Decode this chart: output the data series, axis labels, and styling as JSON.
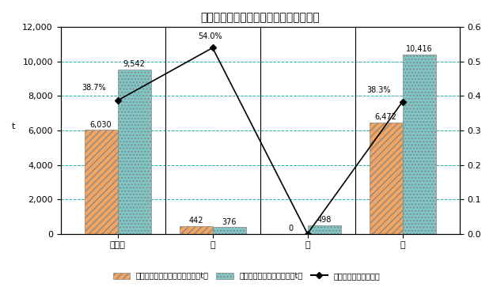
{
  "title": "家畜糞処理計画（堆肥センター処理分）",
  "categories": [
    "乳用牛",
    "豚",
    "馬",
    "計"
  ],
  "bar1_values": [
    6030,
    442,
    0,
    6472
  ],
  "bar2_values": [
    9542,
    376,
    498,
    10416
  ],
  "bar1_labels": [
    "6,030",
    "442",
    "0",
    "6,472"
  ],
  "bar2_labels": [
    "9,542",
    "376",
    "498",
    "10,416"
  ],
  "line_values": [
    0.387,
    0.54,
    0.0,
    0.383
  ],
  "line_labels": [
    "38.7%",
    "54.0%",
    "",
    "38.3%"
  ],
  "ylim_left": [
    0,
    12000
  ],
  "ylim_right": [
    0,
    0.6
  ],
  "yticks_left": [
    0,
    2000,
    4000,
    6000,
    8000,
    10000,
    12000
  ],
  "yticks_right": [
    0.0,
    0.1,
    0.2,
    0.3,
    0.4,
    0.5,
    0.6
  ],
  "ylabel_left": "t",
  "bar1_color": "#f4a460",
  "bar2_color": "#7fc8c8",
  "bar1_hatch": "////",
  "bar2_hatch": "....",
  "line_color": "#000000",
  "line_marker": "D",
  "grid_color_h_teal": "#20b2aa",
  "grid_color_h_top": "#ccaa00",
  "grid_color_v": "#000000",
  "legend1": "堆肥センター年間処理ふん量（t）",
  "legend2": "地先処理年間処理ふん量（t）",
  "legend3": "堆肥センター堆肥化率",
  "bar_width": 0.35,
  "figsize": [
    6.23,
    3.63
  ],
  "dpi": 100,
  "font_size_title": 10,
  "font_size_labels": 7,
  "font_size_ticks": 8,
  "font_size_legend": 7,
  "background_color": "#ffffff"
}
